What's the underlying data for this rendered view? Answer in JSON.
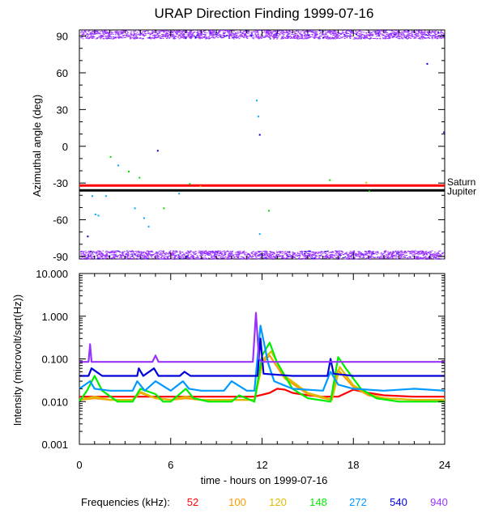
{
  "chart_data": [
    {
      "type": "scatter",
      "title": "URAP Direction Finding  1999-07-16",
      "ylabel": "Azimuthal angle (deg)",
      "ylim": [
        -92,
        95
      ],
      "yticks": [
        "90",
        "60",
        "30",
        "0",
        "-30",
        "-60",
        "-90"
      ],
      "ytick_values": [
        90,
        60,
        30,
        0,
        -30,
        -60,
        -90
      ],
      "xlim": [
        0,
        24
      ],
      "reference_lines": [
        {
          "name": "Saturn",
          "y": -32,
          "color": "#ff0000"
        },
        {
          "name": "Jupiter",
          "y": -36,
          "color": "#000000"
        }
      ],
      "band_top": {
        "ymin": 88,
        "ymax": 95,
        "color": "#9933ff"
      },
      "band_bottom": {
        "ymin": -92,
        "ymax": -85,
        "color": "#9933ff"
      },
      "scattered_points": [
        {
          "x": 0.5,
          "y": -73,
          "color": "#0000cc"
        },
        {
          "x": 0.8,
          "y": -40,
          "color": "#00aaff"
        },
        {
          "x": 1.0,
          "y": -55,
          "color": "#00aaff"
        },
        {
          "x": 1.2,
          "y": -56,
          "color": "#00aaff"
        },
        {
          "x": 1.7,
          "y": -40,
          "color": "#00aaff"
        },
        {
          "x": 2.0,
          "y": -8,
          "color": "#00dd00"
        },
        {
          "x": 2.5,
          "y": -15,
          "color": "#00aaff"
        },
        {
          "x": 3.2,
          "y": -20,
          "color": "#00dd00"
        },
        {
          "x": 3.6,
          "y": -50,
          "color": "#00aaff"
        },
        {
          "x": 3.9,
          "y": -25,
          "color": "#00dd00"
        },
        {
          "x": 4.2,
          "y": -58,
          "color": "#00aaff"
        },
        {
          "x": 4.5,
          "y": -65,
          "color": "#00aaff"
        },
        {
          "x": 5.1,
          "y": -3,
          "color": "#0000cc"
        },
        {
          "x": 5.5,
          "y": -50,
          "color": "#00dd00"
        },
        {
          "x": 6.5,
          "y": -38,
          "color": "#00aaff"
        },
        {
          "x": 7.2,
          "y": -30,
          "color": "#00dd00"
        },
        {
          "x": 7.9,
          "y": -32,
          "color": "#ffaa00"
        },
        {
          "x": 11.6,
          "y": 38,
          "color": "#00aaff"
        },
        {
          "x": 11.7,
          "y": 25,
          "color": "#00aaff"
        },
        {
          "x": 11.8,
          "y": 10,
          "color": "#0000cc"
        },
        {
          "x": 11.8,
          "y": -71,
          "color": "#00aaff"
        },
        {
          "x": 12.4,
          "y": -52,
          "color": "#00dd00"
        },
        {
          "x": 16.4,
          "y": -27,
          "color": "#00dd00"
        },
        {
          "x": 18.8,
          "y": -29,
          "color": "#ffaa00"
        },
        {
          "x": 19.0,
          "y": -36,
          "color": "#00dd00"
        },
        {
          "x": 22.8,
          "y": 68,
          "color": "#0000cc"
        },
        {
          "x": 23.9,
          "y": 12,
          "color": "#0000cc"
        }
      ]
    },
    {
      "type": "line",
      "ylabel": "Intensity (microvolt/sqrt(Hz))",
      "yscale": "log",
      "ylim": [
        0.001,
        10
      ],
      "yticks": [
        "10.000",
        "1.000",
        "0.100",
        "0.010",
        "0.001"
      ],
      "ytick_values": [
        10,
        1,
        0.1,
        0.01,
        0.001
      ],
      "xlabel": "time - hours on 1999-07-16",
      "xlim": [
        0,
        24
      ],
      "xticks": [
        "0",
        "6",
        "12",
        "18",
        "24"
      ],
      "xtick_values": [
        0,
        6,
        12,
        18,
        24
      ],
      "legend_title": "Frequencies (kHz):",
      "series": [
        {
          "name": "52",
          "color": "#ff0000",
          "x": [
            0,
            2,
            4,
            6,
            8,
            10,
            11.5,
            12.5,
            13.0,
            13.5,
            14,
            15,
            16,
            17,
            18,
            19,
            20,
            22,
            24
          ],
          "values": [
            0.013,
            0.013,
            0.013,
            0.013,
            0.013,
            0.013,
            0.013,
            0.016,
            0.02,
            0.019,
            0.016,
            0.014,
            0.013,
            0.013,
            0.019,
            0.016,
            0.014,
            0.013,
            0.013
          ]
        },
        {
          "name": "100",
          "color": "#ff9900",
          "x": [
            0,
            1,
            2,
            3.5,
            4,
            5,
            6,
            7,
            8,
            10,
            11.5,
            12.0,
            12.5,
            13.5,
            15,
            16.5,
            17.0,
            18,
            19,
            20,
            22,
            24
          ],
          "values": [
            0.011,
            0.012,
            0.011,
            0.011,
            0.016,
            0.012,
            0.011,
            0.012,
            0.011,
            0.011,
            0.011,
            0.08,
            0.12,
            0.035,
            0.015,
            0.011,
            0.055,
            0.022,
            0.014,
            0.012,
            0.011,
            0.011
          ]
        },
        {
          "name": "120",
          "color": "#ddbb00",
          "x": [
            0,
            1,
            2,
            3.5,
            4,
            5,
            6,
            7,
            8,
            10,
            11.5,
            12.1,
            12.6,
            13.5,
            15,
            16.6,
            17.1,
            18,
            19,
            20,
            22,
            24
          ],
          "values": [
            0.011,
            0.013,
            0.011,
            0.011,
            0.017,
            0.012,
            0.011,
            0.013,
            0.011,
            0.011,
            0.011,
            0.1,
            0.15,
            0.04,
            0.016,
            0.011,
            0.065,
            0.024,
            0.015,
            0.012,
            0.011,
            0.011
          ]
        },
        {
          "name": "148",
          "color": "#00ee00",
          "x": [
            0,
            0.5,
            1,
            1.5,
            2.5,
            3.5,
            4.0,
            5.0,
            5.5,
            6,
            7,
            7.5,
            8.5,
            10,
            10.5,
            11.5,
            12.0,
            12.5,
            13.0,
            14,
            15,
            16.5,
            17.0,
            17.5,
            18.5,
            19.5,
            21,
            24
          ],
          "values": [
            0.01,
            0.018,
            0.04,
            0.018,
            0.01,
            0.01,
            0.02,
            0.015,
            0.01,
            0.01,
            0.02,
            0.012,
            0.01,
            0.01,
            0.014,
            0.01,
            0.12,
            0.24,
            0.08,
            0.02,
            0.012,
            0.01,
            0.11,
            0.06,
            0.02,
            0.012,
            0.01,
            0.01
          ]
        },
        {
          "name": "272",
          "color": "#0099ff",
          "x": [
            0,
            0.7,
            1.0,
            2,
            3.5,
            3.8,
            4.3,
            5.0,
            6,
            6.8,
            7.2,
            8,
            9.5,
            10,
            11,
            11.5,
            11.9,
            12.4,
            12.8,
            14,
            16,
            16.5,
            17.0,
            18,
            20,
            22,
            24
          ],
          "values": [
            0.02,
            0.03,
            0.02,
            0.018,
            0.018,
            0.03,
            0.018,
            0.03,
            0.018,
            0.03,
            0.02,
            0.018,
            0.018,
            0.03,
            0.018,
            0.018,
            0.6,
            0.08,
            0.03,
            0.02,
            0.018,
            0.05,
            0.025,
            0.02,
            0.018,
            0.02,
            0.018
          ]
        },
        {
          "name": "540",
          "color": "#0000dd",
          "x": [
            0,
            0.6,
            0.8,
            1.5,
            3.8,
            3.9,
            4.2,
            4.9,
            5.2,
            6.6,
            6.9,
            7.3,
            10,
            11.7,
            11.9,
            12.1,
            14,
            16.3,
            16.5,
            16.7,
            18,
            20,
            22,
            24
          ],
          "values": [
            0.04,
            0.04,
            0.06,
            0.04,
            0.04,
            0.06,
            0.04,
            0.06,
            0.04,
            0.04,
            0.05,
            0.04,
            0.04,
            0.04,
            0.3,
            0.045,
            0.04,
            0.04,
            0.1,
            0.045,
            0.04,
            0.04,
            0.04,
            0.04
          ]
        },
        {
          "name": "940",
          "color": "#9933ff",
          "x": [
            0,
            0.6,
            0.7,
            0.8,
            2,
            4.8,
            5.0,
            5.2,
            8,
            11.4,
            11.6,
            11.8,
            12.0,
            14,
            18,
            22,
            24
          ],
          "values": [
            0.085,
            0.085,
            0.22,
            0.085,
            0.085,
            0.085,
            0.12,
            0.085,
            0.085,
            0.085,
            1.2,
            0.1,
            0.085,
            0.085,
            0.085,
            0.085,
            0.085
          ]
        }
      ]
    }
  ]
}
